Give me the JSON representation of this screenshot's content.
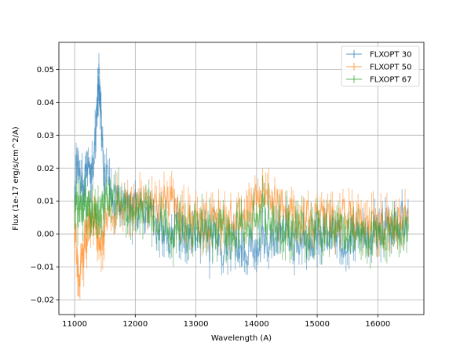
{
  "chart_data": {
    "type": "line",
    "title": "",
    "xlabel": "Wavelength (A)",
    "ylabel": "Flux (1e-17 erg/s/cm^2/A)",
    "xlim": [
      10740,
      16760
    ],
    "ylim": [
      -0.0245,
      0.0582
    ],
    "xticks": [
      11000,
      12000,
      13000,
      14000,
      15000,
      16000
    ],
    "yticks": [
      -0.02,
      -0.01,
      0.0,
      0.01,
      0.02,
      0.03,
      0.04,
      0.05
    ],
    "ytick_labels": [
      "−0.02",
      "−0.01",
      "0.00",
      "0.01",
      "0.02",
      "0.03",
      "0.04",
      "0.05"
    ],
    "grid": true,
    "legend_position": "top-right",
    "series": [
      {
        "name": "FLXOPT 30",
        "color": "#1f77b4",
        "x": [
          11000,
          11050,
          11100,
          11150,
          11200,
          11250,
          11300,
          11350,
          11380,
          11400,
          11420,
          11450,
          11500,
          11600,
          11700,
          11800,
          11900,
          12000,
          12100,
          12200,
          12300,
          12400,
          12500,
          12600,
          12700,
          12800,
          12900,
          13000,
          13100,
          13200,
          13300,
          13400,
          13500,
          13600,
          13700,
          13800,
          13900,
          14000,
          14100,
          14200,
          14300,
          14400,
          14500,
          14600,
          14700,
          14800,
          14900,
          15000,
          15100,
          15200,
          15300,
          15400,
          15500,
          15600,
          15700,
          15800,
          15900,
          16000,
          16100,
          16200,
          16300,
          16400,
          16500
        ],
        "y": [
          0.016,
          0.021,
          0.018,
          0.015,
          0.016,
          0.019,
          0.022,
          0.028,
          0.04,
          0.048,
          0.042,
          0.026,
          0.017,
          0.012,
          0.01,
          0.011,
          0.009,
          0.008,
          0.006,
          0.005,
          0.003,
          0.002,
          0.0,
          -0.001,
          0.001,
          0.0,
          -0.002,
          -0.001,
          0.0,
          -0.003,
          -0.002,
          -0.004,
          -0.003,
          -0.002,
          -0.004,
          -0.005,
          -0.003,
          -0.006,
          -0.003,
          -0.002,
          -0.001,
          0.0,
          0.001,
          -0.002,
          -0.004,
          -0.003,
          -0.002,
          -0.001,
          0.0,
          0.001,
          0.0,
          -0.002,
          -0.001,
          0.0,
          0.001,
          0.0,
          -0.001,
          0.001,
          0.002,
          0.001,
          0.003,
          0.004,
          0.006
        ]
      },
      {
        "name": "FLXOPT 50",
        "color": "#ff7f0e",
        "x": [
          11000,
          11050,
          11100,
          11150,
          11200,
          11250,
          11300,
          11350,
          11400,
          11450,
          11500,
          11600,
          11700,
          11800,
          11900,
          12000,
          12100,
          12200,
          12300,
          12400,
          12500,
          12600,
          12700,
          12800,
          12900,
          13000,
          13100,
          13200,
          13300,
          13400,
          13500,
          13600,
          13700,
          13800,
          13900,
          14000,
          14100,
          14200,
          14300,
          14400,
          14500,
          14600,
          14700,
          14800,
          14900,
          15000,
          15100,
          15200,
          15300,
          15400,
          15500,
          15600,
          15700,
          15800,
          15900,
          16000,
          16100,
          16200,
          16300,
          16400,
          16500
        ],
        "y": [
          0.0,
          -0.008,
          -0.012,
          -0.006,
          0.0,
          0.004,
          0.006,
          0.002,
          -0.004,
          -0.002,
          0.004,
          0.006,
          0.008,
          0.009,
          0.01,
          0.009,
          0.01,
          0.009,
          0.008,
          0.009,
          0.01,
          0.01,
          0.008,
          0.006,
          0.004,
          0.004,
          0.003,
          0.004,
          0.006,
          0.005,
          0.004,
          0.005,
          0.006,
          0.007,
          0.008,
          0.01,
          0.012,
          0.011,
          0.009,
          0.008,
          0.007,
          0.006,
          0.005,
          0.006,
          0.005,
          0.004,
          0.005,
          0.004,
          0.005,
          0.006,
          0.005,
          0.004,
          0.003,
          0.002,
          0.003,
          0.002,
          0.002,
          0.003,
          0.002,
          0.004,
          0.005
        ]
      },
      {
        "name": "FLXOPT 67",
        "color": "#2ca02c",
        "x": [
          11000,
          11050,
          11100,
          11150,
          11200,
          11250,
          11300,
          11350,
          11400,
          11450,
          11500,
          11600,
          11700,
          11800,
          11900,
          12000,
          12100,
          12200,
          12300,
          12400,
          12500,
          12600,
          12700,
          12800,
          12900,
          13000,
          13100,
          13200,
          13300,
          13400,
          13500,
          13600,
          13700,
          13800,
          13900,
          14000,
          14100,
          14200,
          14300,
          14400,
          14500,
          14600,
          14700,
          14800,
          14900,
          15000,
          15100,
          15200,
          15300,
          15400,
          15500,
          15600,
          15700,
          15800,
          15900,
          16000,
          16100,
          16200,
          16300,
          16400,
          16500
        ],
        "y": [
          0.01,
          0.008,
          0.006,
          0.008,
          0.01,
          0.009,
          0.008,
          0.006,
          0.006,
          0.008,
          0.01,
          0.012,
          0.011,
          0.01,
          0.009,
          0.01,
          0.008,
          0.006,
          0.004,
          0.003,
          0.002,
          0.001,
          0.002,
          0.003,
          0.002,
          0.001,
          0.002,
          0.001,
          0.0,
          0.002,
          0.001,
          0.002,
          0.001,
          0.003,
          0.004,
          0.006,
          0.007,
          0.005,
          0.004,
          0.003,
          0.002,
          0.001,
          0.002,
          0.001,
          0.0,
          0.002,
          0.001,
          0.0,
          0.001,
          0.002,
          0.001,
          0.0,
          0.001,
          0.0,
          -0.001,
          0.0,
          0.001,
          0.0,
          0.001,
          0.002,
          0.003
        ]
      }
    ]
  }
}
